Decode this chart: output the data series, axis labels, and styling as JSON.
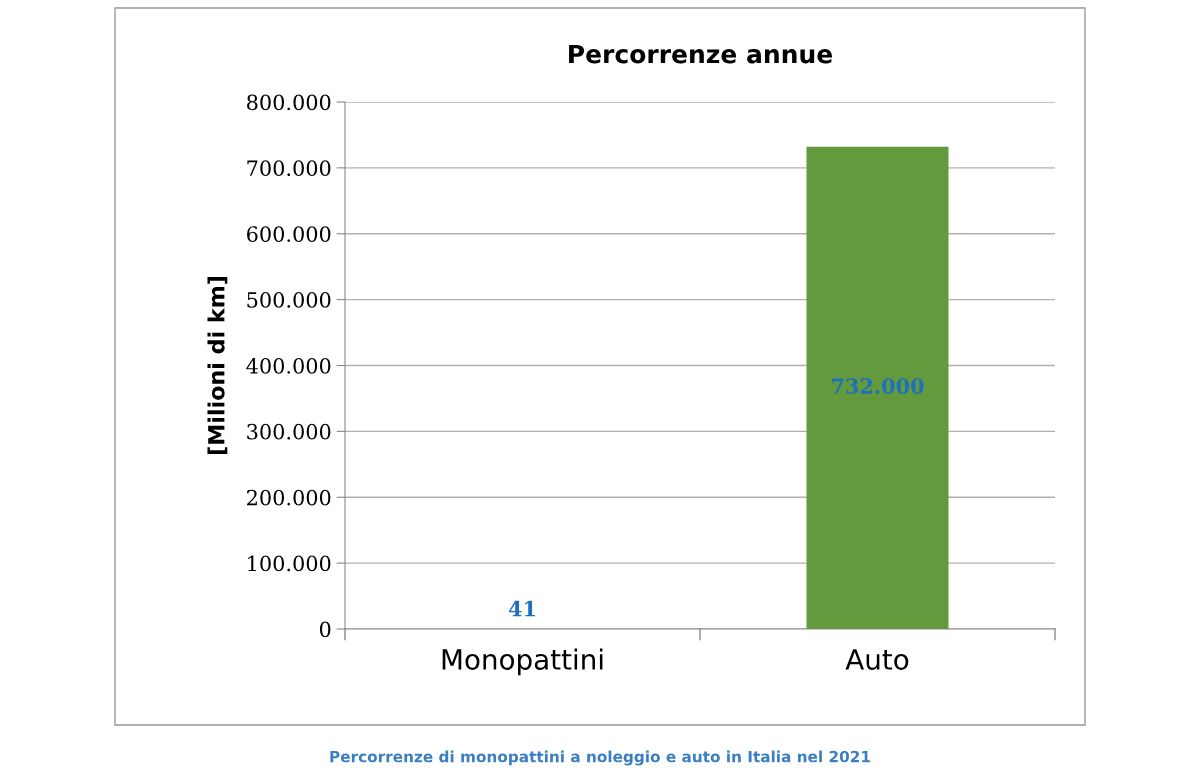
{
  "chart_data": {
    "type": "bar",
    "title": "Percorrenze annue",
    "ylabel": "[Milioni di km]",
    "categories": [
      "Monopattini",
      "Auto"
    ],
    "values": [
      41,
      732000
    ],
    "color": "#639a3d",
    "value_labels": [
      "41",
      "732.000"
    ],
    "ylim": [
      0,
      800000
    ],
    "yticks": [
      0,
      {
        "value": 100000,
        "label": "100.000"
      },
      {
        "value": 200000,
        "label": "200.000"
      },
      {
        "value": 300000,
        "label": "300.000"
      },
      {
        "value": 400000,
        "label": "400.000"
      },
      {
        "value": 500000,
        "label": "500.000"
      },
      {
        "value": 600000,
        "label": "600.000"
      },
      {
        "value": 700000,
        "label": "700.000"
      },
      {
        "value": 800000,
        "label": "800.000"
      }
    ],
    "grid": "y",
    "annotations": [
      "Percorrenze di monopattini a noleggio e auto in Italia nel 2021"
    ]
  }
}
